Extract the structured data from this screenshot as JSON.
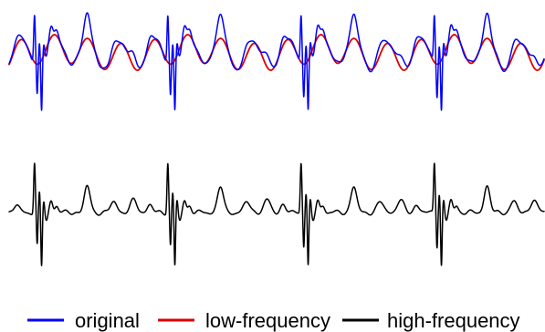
{
  "chart_data": [
    {
      "type": "line",
      "title": "",
      "xlabel": "",
      "ylabel": "",
      "grid": false,
      "legend": "bottom",
      "beats": 4,
      "series": [
        {
          "name": "original",
          "color": "#0000ff"
        },
        {
          "name": "low-frequency",
          "color": "#dd0000"
        }
      ]
    },
    {
      "type": "line",
      "title": "",
      "xlabel": "",
      "ylabel": "",
      "grid": false,
      "beats": 4,
      "series": [
        {
          "name": "high-frequency",
          "color": "#000000"
        }
      ]
    }
  ],
  "legend": [
    {
      "name": "original",
      "color": "#0000ff"
    },
    {
      "name": "low-frequency",
      "color": "#dd0000"
    },
    {
      "name": "high-frequency",
      "color": "#000000"
    }
  ]
}
